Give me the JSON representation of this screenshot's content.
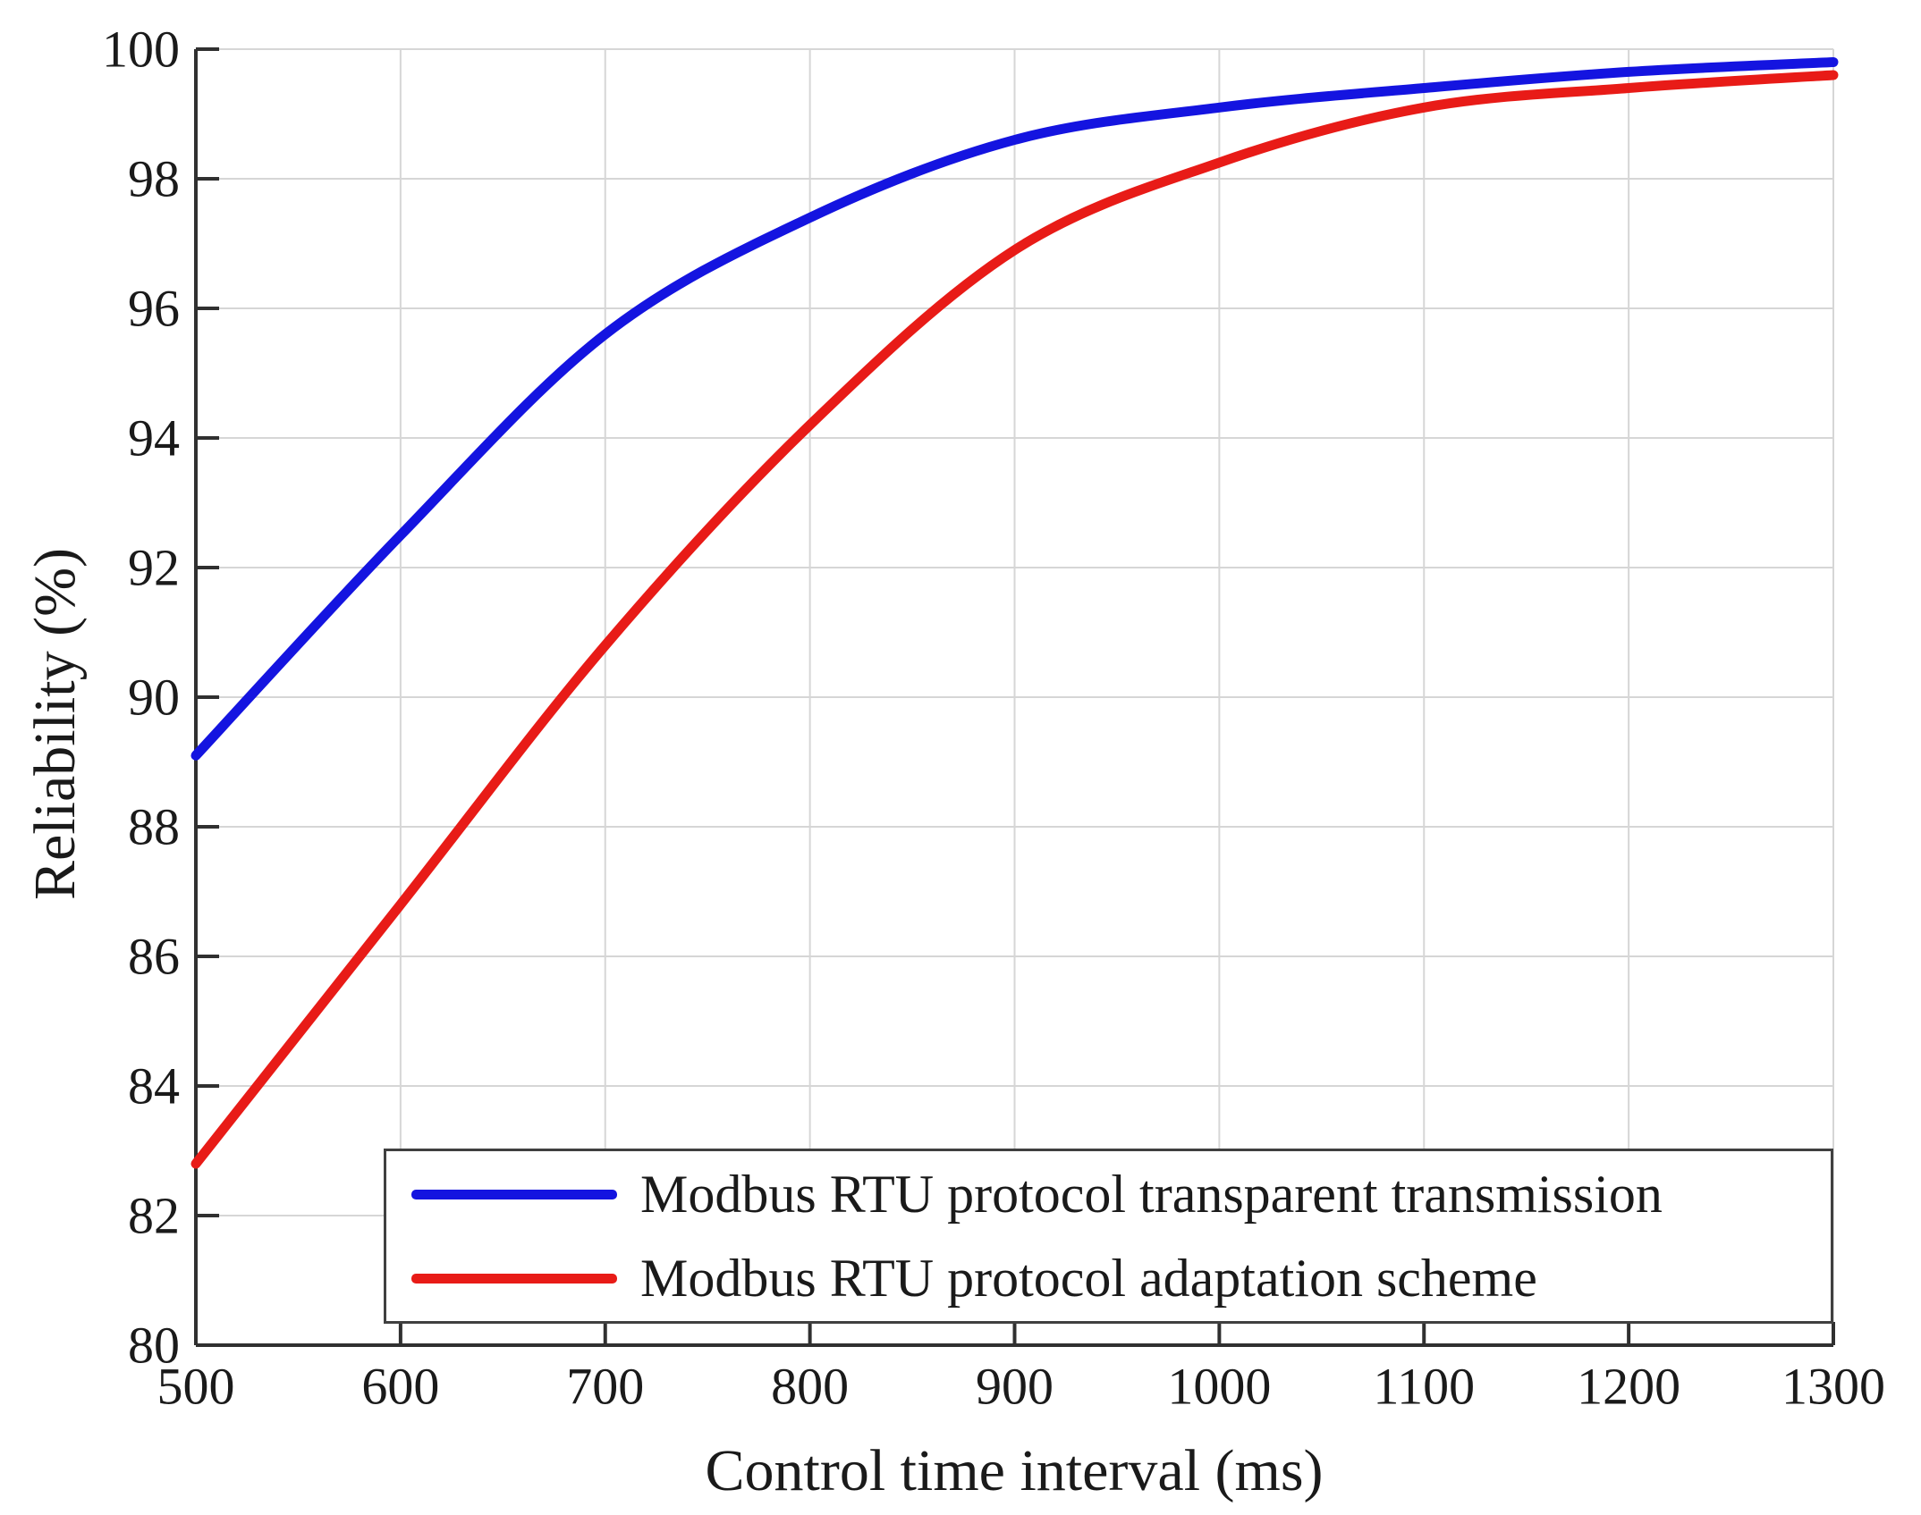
{
  "figure": {
    "background": "#ffffff",
    "text_color": "#1a1a1a",
    "axis_color": "#303030",
    "grid_color": "#d6d6d6"
  },
  "axes": {
    "x_label": "Control time interval (ms)",
    "y_label": "Reliability (%)",
    "x_ticks": [
      500,
      600,
      700,
      800,
      900,
      1000,
      1100,
      1200,
      1300
    ],
    "y_ticks": [
      80,
      82,
      84,
      86,
      88,
      90,
      92,
      94,
      96,
      98,
      100
    ]
  },
  "chart_data": {
    "type": "line",
    "title": "",
    "xlabel": "Control time interval (ms)",
    "ylabel": "Reliability (%)",
    "xlim": [
      500,
      1300
    ],
    "ylim": [
      80,
      100
    ],
    "grid": true,
    "legend_position": "lower right",
    "x": [
      500,
      600,
      700,
      800,
      900,
      1000,
      1100,
      1200,
      1300
    ],
    "series": [
      {
        "name": "Modbus RTU protocol transparent transmission",
        "color": "#1414e0",
        "values": [
          89.1,
          92.5,
          95.6,
          97.4,
          98.6,
          99.1,
          99.4,
          99.65,
          99.8
        ]
      },
      {
        "name": "Modbus RTU protocol adaptation scheme",
        "color": "#e81b17",
        "values": [
          82.8,
          86.8,
          90.8,
          94.2,
          96.9,
          98.25,
          99.1,
          99.4,
          99.6
        ]
      }
    ]
  }
}
